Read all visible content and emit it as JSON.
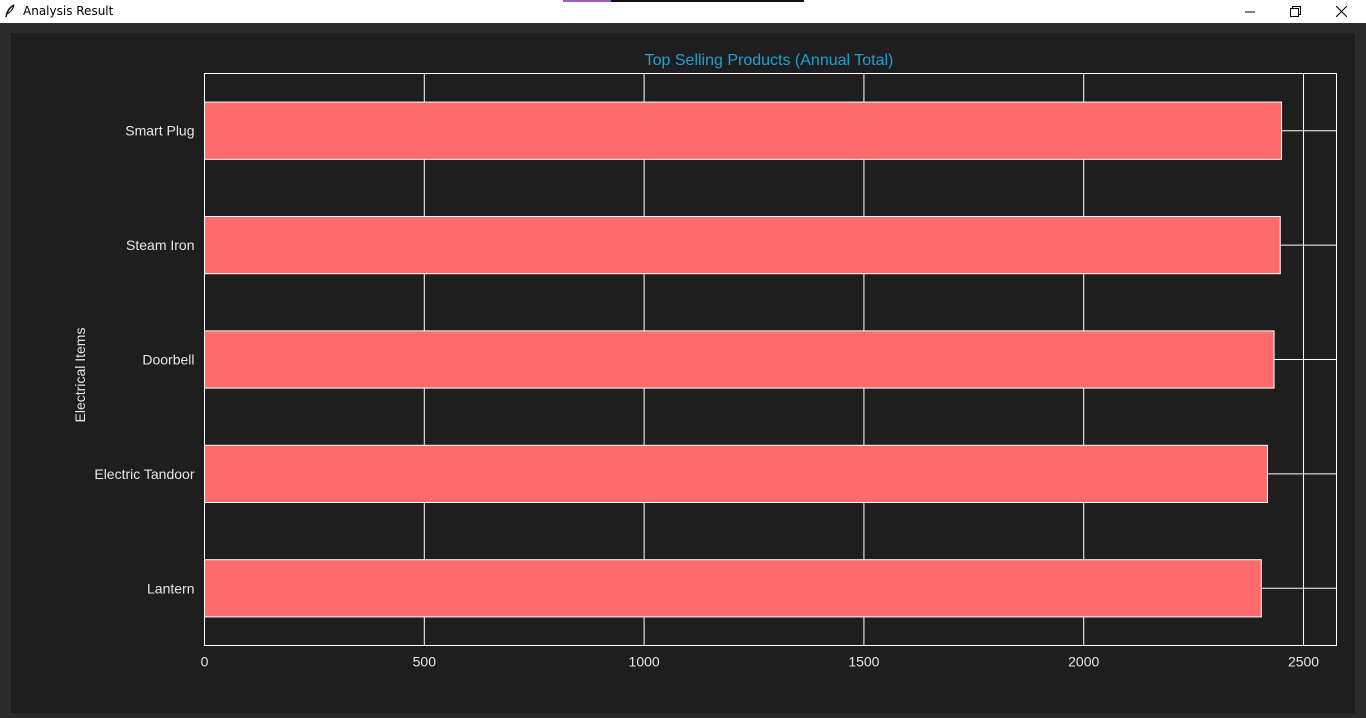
{
  "window": {
    "title": "Analysis Result",
    "app_icon": "feather-icon",
    "controls": [
      "minimize-icon",
      "restore-icon",
      "close-icon"
    ]
  },
  "colors": {
    "bar": "#ff6b6b",
    "title": "#1ba1d1",
    "text": "#e6e6e6",
    "grid": "#ffffff",
    "plot_bg": "#1e1e1e",
    "window_bg": "#2b2b2b"
  },
  "chart_data": {
    "type": "bar",
    "orientation": "horizontal",
    "title": "Top Selling Products (Annual Total)",
    "xlabel": "",
    "ylabel": "Electrical Items",
    "categories": [
      "Smart Plug",
      "Steam Iron",
      "Doorbell",
      "Electric Tandoor",
      "Lantern"
    ],
    "values": [
      2450,
      2447,
      2433,
      2418,
      2404
    ],
    "xlim": [
      0,
      2575
    ],
    "xticks": [
      0,
      500,
      1000,
      1500,
      2000,
      2500
    ],
    "grid": true
  }
}
